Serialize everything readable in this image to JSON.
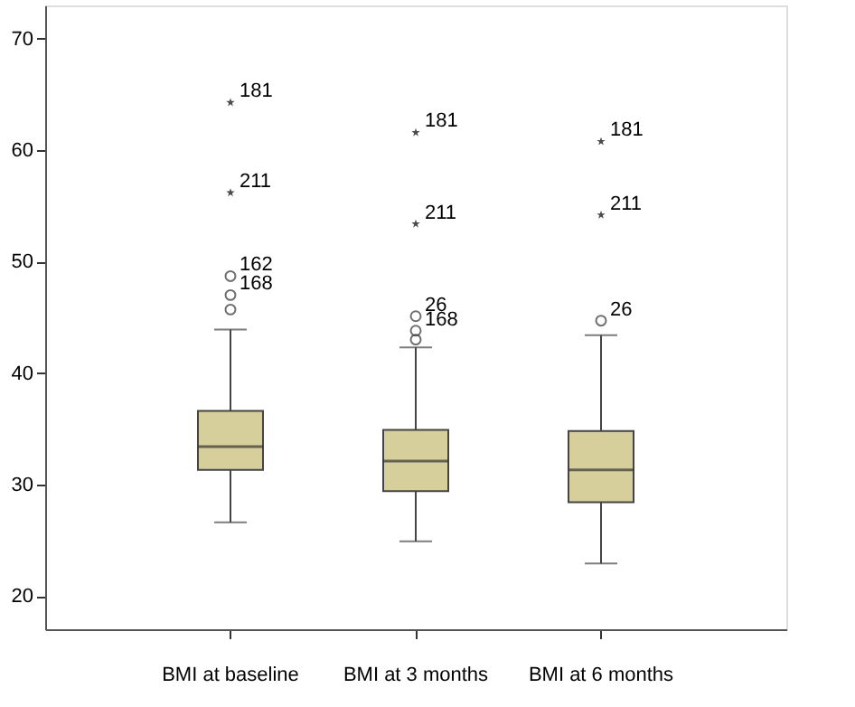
{
  "chart_data": {
    "type": "box",
    "categories": [
      "BMI at baseline",
      "BMI at 3 months",
      "BMI at 6 months"
    ],
    "boxes": [
      {
        "low": 26.6,
        "q1": 31.3,
        "median": 33.4,
        "q3": 36.6,
        "high": 43.9
      },
      {
        "low": 24.9,
        "q1": 29.4,
        "median": 32.1,
        "q3": 34.9,
        "high": 42.3
      },
      {
        "low": 22.9,
        "q1": 28.4,
        "median": 31.3,
        "q3": 34.8,
        "high": 43.4
      }
    ],
    "color": "#d6cf9b",
    "series": [
      {
        "type": "scatter",
        "marker": "star",
        "color": "#000000",
        "x": [
          "BMI at baseline",
          "BMI at baseline",
          "BMI at 3 months",
          "BMI at 3 months",
          "BMI at 6 months",
          "BMI at 6 months"
        ],
        "values": [
          64.3,
          56.2,
          61.6,
          53.4,
          60.8,
          54.2
        ]
      },
      {
        "type": "scatter",
        "marker": "circle",
        "color": "#333333",
        "x": [
          "BMI at baseline",
          "BMI at baseline",
          "BMI at baseline",
          "BMI at 3 months",
          "BMI at 3 months",
          "BMI at 3 months",
          "BMI at 6 months"
        ],
        "values": [
          48.7,
          47.0,
          45.7,
          45.1,
          43.8,
          43.0,
          44.7
        ]
      }
    ],
    "ylim": [
      17,
      73
    ],
    "yticks": [
      20,
      30,
      40,
      50,
      60,
      70
    ],
    "grid": false,
    "annotations": [
      {
        "text": "181",
        "x": "BMI at baseline",
        "y": 64.3
      },
      {
        "text": "211",
        "x": "BMI at baseline",
        "y": 56.2
      },
      {
        "text": "162",
        "x": "BMI at baseline",
        "y": 48.7
      },
      {
        "text": "168",
        "x": "BMI at baseline",
        "y": 47.0
      },
      {
        "text": "181",
        "x": "BMI at 3 months",
        "y": 61.6
      },
      {
        "text": "211",
        "x": "BMI at 3 months",
        "y": 53.4
      },
      {
        "text": "26",
        "x": "BMI at 3 months",
        "y": 45.1
      },
      {
        "text": "168",
        "x": "BMI at 3 months",
        "y": 43.8
      },
      {
        "text": "181",
        "x": "BMI at 6 months",
        "y": 60.8
      },
      {
        "text": "211",
        "x": "BMI at 6 months",
        "y": 54.2
      },
      {
        "text": "26",
        "x": "BMI at 6 months",
        "y": 44.7
      }
    ]
  }
}
